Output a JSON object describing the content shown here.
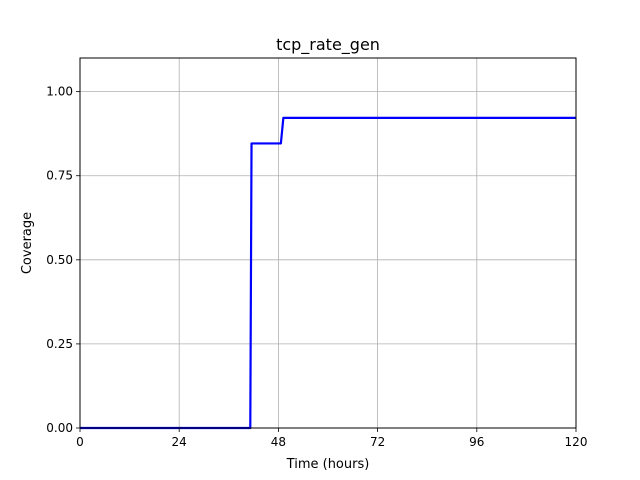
{
  "chart_data": {
    "type": "line",
    "title": "tcp_rate_gen",
    "xlabel": "Time (hours)",
    "ylabel": "Coverage",
    "xlim": [
      0,
      120
    ],
    "ylim": [
      0,
      1.1
    ],
    "x_ticks": [
      0,
      24,
      48,
      72,
      96,
      120
    ],
    "x_tick_labels": [
      "0",
      "24",
      "48",
      "72",
      "96",
      "120"
    ],
    "y_ticks": [
      0,
      0.25,
      0.5,
      0.75,
      1.0
    ],
    "y_tick_labels": [
      "0.00",
      "0.25",
      "0.50",
      "0.75",
      "1.00"
    ],
    "grid": true,
    "series": [
      {
        "color": "#0000ff",
        "x": [
          0,
          41.2,
          41.5,
          48.6,
          49.2,
          120
        ],
        "y": [
          0,
          0,
          0.846,
          0.846,
          0.922,
          0.922
        ]
      }
    ]
  }
}
